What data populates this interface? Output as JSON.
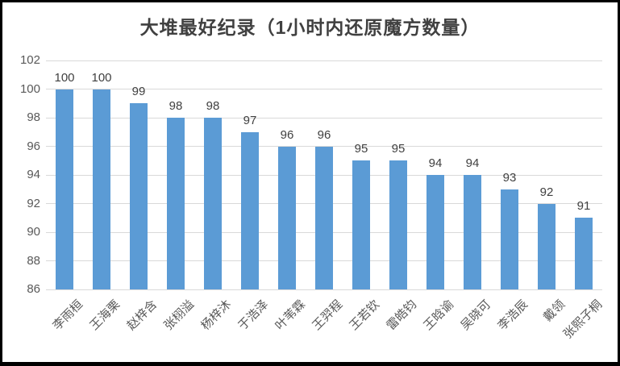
{
  "chart_data": {
    "type": "bar",
    "title": "大堆最好纪录（1小时内还原魔方数量）",
    "categories": [
      "李雨桓",
      "王海栗",
      "赵梓含",
      "张栩溢",
      "杨梓沐",
      "于浩泽",
      "叶苇霖",
      "王羿程",
      "王若钦",
      "雷皓钧",
      "王晗谕",
      "吴晓可",
      "李浩辰",
      "戴领",
      "张熙子桐"
    ],
    "values": [
      100,
      100,
      99,
      98,
      98,
      97,
      96,
      96,
      95,
      95,
      94,
      94,
      93,
      92,
      91
    ],
    "xlabel": "",
    "ylabel": "",
    "ylim": [
      86,
      102
    ],
    "ytick_step": 2,
    "y_ticks": [
      86,
      88,
      90,
      92,
      94,
      96,
      98,
      100,
      102
    ],
    "grid": true,
    "legend_position": "none",
    "data_labels": true,
    "bar_color": "#5b9bd5",
    "gridline_color": "#d9d9d9",
    "title_color": "#404040",
    "data_label_color": "#404040",
    "axis_label_color": "#595959",
    "frame_border_color": "#000000",
    "background_color": "#ffffff"
  }
}
